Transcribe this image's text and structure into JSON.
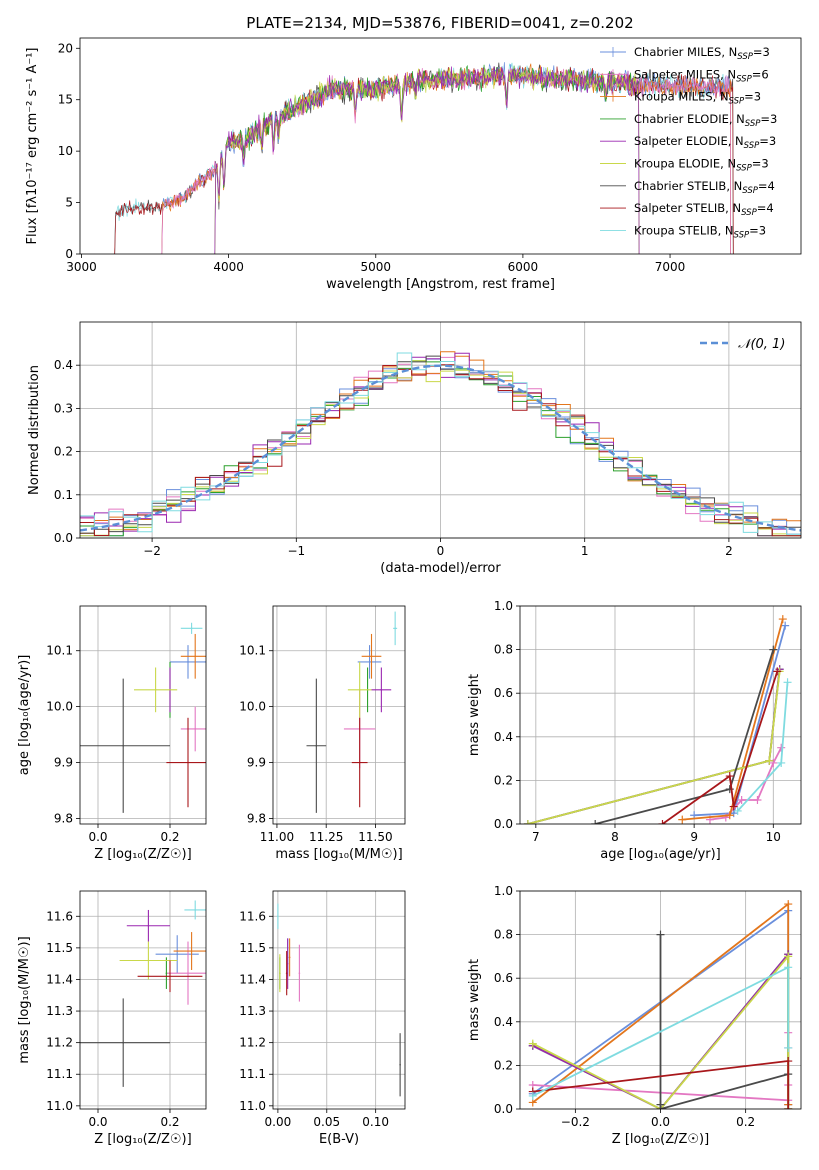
{
  "figure_title": "PLATE=2134, MJD=53876, FIBERID=0041, z=0.202",
  "colors": {
    "Chabrier MILES": "#6a8fdc",
    "Salpeter MILES": "#e377c2",
    "Kroupa MILES": "#e3761c",
    "Chabrier ELODIE": "#2ca02c",
    "Salpeter ELODIE": "#9a27b0",
    "Kroupa ELODIE": "#c9d84a",
    "Chabrier STELIB": "#4a4a4a",
    "Salpeter STELIB": "#a8171b",
    "Kroupa STELIB": "#7fdbe0",
    "normal": "#5b8fd6"
  },
  "chart_data": [
    {
      "id": "spectrum",
      "type": "line",
      "title": "PLATE=2134, MJD=53876, FIBERID=0041, z=0.202",
      "xlabel": "wavelength [Angstrom, rest frame]",
      "ylabel": "Flux [fλ10⁻¹⁷ erg cm⁻² s⁻¹ A⁻¹]",
      "xlim": [
        2990,
        7890
      ],
      "ylim": [
        0,
        21
      ],
      "xticks": [
        3000,
        4000,
        5000,
        6000,
        7000
      ],
      "yticks": [
        0,
        5,
        10,
        15,
        20
      ],
      "grid": false,
      "legend_position": "right",
      "legend": [
        {
          "label": "Chabrier MILES, N",
          "sub": "SSP",
          "suffix": "=3"
        },
        {
          "label": "Salpeter MILES, N",
          "sub": "SSP",
          "suffix": "=6"
        },
        {
          "label": "Kroupa MILES, N",
          "sub": "SSP",
          "suffix": "=3"
        },
        {
          "label": "Chabrier ELODIE, N",
          "sub": "SSP",
          "suffix": "=3"
        },
        {
          "label": "Salpeter ELODIE, N",
          "sub": "SSP",
          "suffix": "=3"
        },
        {
          "label": "Kroupa ELODIE, N",
          "sub": "SSP",
          "suffix": "=3"
        },
        {
          "label": "Chabrier STELIB, N",
          "sub": "SSP",
          "suffix": "=4"
        },
        {
          "label": "Salpeter STELIB, N",
          "sub": "SSP",
          "suffix": "=4"
        },
        {
          "label": "Kroupa STELIB, N",
          "sub": "SSP",
          "suffix": "=3"
        }
      ],
      "continuum": [
        [
          3200,
          3.5
        ],
        [
          3300,
          4.5
        ],
        [
          3500,
          4.5
        ],
        [
          3700,
          5.5
        ],
        [
          3800,
          7
        ],
        [
          3900,
          8
        ],
        [
          4000,
          11
        ],
        [
          4100,
          11
        ],
        [
          4300,
          13
        ],
        [
          4500,
          14.5
        ],
        [
          4700,
          16
        ],
        [
          5000,
          16
        ],
        [
          5300,
          17
        ],
        [
          5600,
          17
        ],
        [
          5900,
          17.5
        ],
        [
          6200,
          17
        ],
        [
          6500,
          16.8
        ],
        [
          6800,
          16.5
        ],
        [
          7100,
          16.3
        ],
        [
          7400,
          16.2
        ],
        [
          7700,
          16
        ]
      ],
      "series_ranges": [
        {
          "name": "Chabrier MILES",
          "x": [
            3540,
            7410
          ]
        },
        {
          "name": "Salpeter MILES",
          "x": [
            3540,
            7410
          ]
        },
        {
          "name": "Kroupa MILES",
          "x": [
            3540,
            7410
          ]
        },
        {
          "name": "Chabrier ELODIE",
          "x": [
            3900,
            6790
          ]
        },
        {
          "name": "Salpeter ELODIE",
          "x": [
            3900,
            6790
          ]
        },
        {
          "name": "Kroupa ELODIE",
          "x": [
            3900,
            6790
          ]
        },
        {
          "name": "Chabrier STELIB",
          "x": [
            3220,
            7430
          ]
        },
        {
          "name": "Salpeter STELIB",
          "x": [
            3220,
            7430
          ]
        },
        {
          "name": "Kroupa STELIB",
          "x": [
            3220,
            7430
          ]
        }
      ]
    },
    {
      "id": "residuals",
      "type": "histogram",
      "xlabel": "(data-model)/error",
      "ylabel": "Normed distribution",
      "xlim": [
        -2.5,
        2.5
      ],
      "ylim": [
        0,
        0.5
      ],
      "xticks": [
        -2,
        -1,
        0,
        1,
        2
      ],
      "yticks": [
        0.0,
        0.1,
        0.2,
        0.3,
        0.4
      ],
      "grid": true,
      "legend_position": "top-right",
      "legend_label": "𝒩(0, 1)",
      "bin_width": 0.1
    },
    {
      "id": "age_vs_Z",
      "type": "errorbar",
      "xlabel": "Z [log₁₀(Z/Z☉)]",
      "ylabel": "age  [log₁₀(age/yr)]",
      "xlim": [
        -0.05,
        0.3
      ],
      "ylim": [
        9.79,
        10.18
      ],
      "xticks": [
        0.0,
        0.2
      ],
      "yticks": [
        9.8,
        9.9,
        10.0,
        10.1
      ],
      "points": [
        {
          "s": "Chabrier MILES",
          "x": 0.25,
          "xe": 0.05,
          "y": 10.08,
          "ye": 0.03
        },
        {
          "s": "Salpeter MILES",
          "x": 0.27,
          "xe": 0.04,
          "y": 9.96,
          "ye": 0.04
        },
        {
          "s": "Kroupa MILES",
          "x": 0.27,
          "xe": 0.04,
          "y": 10.09,
          "ye": 0.04
        },
        {
          "s": "Chabrier ELODIE",
          "x": 0.2,
          "xe": 0.0,
          "y": 10.03,
          "ye": 0.05
        },
        {
          "s": "Salpeter ELODIE",
          "x": 0.2,
          "xe": 0.0,
          "y": 10.03,
          "ye": 0.04
        },
        {
          "s": "Kroupa ELODIE",
          "x": 0.16,
          "xe": 0.06,
          "y": 10.03,
          "ye": 0.04
        },
        {
          "s": "Chabrier STELIB",
          "x": 0.07,
          "xe": 0.13,
          "y": 9.93,
          "ye": 0.12
        },
        {
          "s": "Salpeter STELIB",
          "x": 0.25,
          "xe": 0.06,
          "y": 9.9,
          "ye": 0.08
        },
        {
          "s": "Kroupa STELIB",
          "x": 0.26,
          "xe": 0.03,
          "y": 10.14,
          "ye": 0.01
        }
      ]
    },
    {
      "id": "age_vs_mass",
      "type": "errorbar",
      "xlabel": "mass [log₁₀(M/M☉)]",
      "ylabel": "",
      "xlim": [
        10.98,
        11.65
      ],
      "ylim": [
        9.79,
        10.18
      ],
      "xticks": [
        11.0,
        11.25,
        11.5
      ],
      "yticks": [
        9.8,
        9.9,
        10.0,
        10.1
      ],
      "points": [
        {
          "s": "Chabrier MILES",
          "x": 11.47,
          "xe": 0.06,
          "y": 10.08,
          "ye": 0.03
        },
        {
          "s": "Salpeter MILES",
          "x": 11.42,
          "xe": 0.08,
          "y": 9.96,
          "ye": 0.07
        },
        {
          "s": "Kroupa MILES",
          "x": 11.48,
          "xe": 0.05,
          "y": 10.09,
          "ye": 0.04
        },
        {
          "s": "Chabrier ELODIE",
          "x": 11.46,
          "xe": 0.0,
          "y": 10.03,
          "ye": 0.04
        },
        {
          "s": "Salpeter ELODIE",
          "x": 11.53,
          "xe": 0.05,
          "y": 10.03,
          "ye": 0.04
        },
        {
          "s": "Kroupa ELODIE",
          "x": 11.42,
          "xe": 0.06,
          "y": 10.03,
          "ye": 0.05
        },
        {
          "s": "Chabrier STELIB",
          "x": 11.2,
          "xe": 0.05,
          "y": 9.93,
          "ye": 0.12
        },
        {
          "s": "Salpeter STELIB",
          "x": 11.42,
          "xe": 0.04,
          "y": 9.9,
          "ye": 0.08
        },
        {
          "s": "Kroupa STELIB",
          "x": 11.6,
          "xe": 0.01,
          "y": 10.14,
          "ye": 0.03
        }
      ]
    },
    {
      "id": "weight_vs_age",
      "type": "line",
      "xlabel": "age  [log₁₀(age/yr)]",
      "ylabel": "mass weight",
      "xlim": [
        6.8,
        10.35
      ],
      "ylim": [
        0,
        1
      ],
      "xticks": [
        7,
        8,
        9,
        10
      ],
      "yticks": [
        0.0,
        0.2,
        0.4,
        0.6,
        0.8,
        1.0
      ],
      "series": [
        {
          "name": "Chabrier MILES",
          "x": [
            9.0,
            9.5,
            10.15
          ],
          "y": [
            0.04,
            0.05,
            0.91
          ]
        },
        {
          "name": "Salpeter MILES",
          "x": [
            9.2,
            9.4,
            9.6,
            9.8,
            10.0,
            10.1
          ],
          "y": [
            0.02,
            0.03,
            0.11,
            0.11,
            0.28,
            0.35
          ]
        },
        {
          "name": "Kroupa MILES",
          "x": [
            8.85,
            9.45,
            10.12
          ],
          "y": [
            0.02,
            0.04,
            0.94
          ]
        },
        {
          "name": "Chabrier ELODIE",
          "x": [
            6.9,
            9.95,
            10.08
          ],
          "y": [
            0.0,
            0.29,
            0.71
          ]
        },
        {
          "name": "Salpeter ELODIE",
          "x": [
            6.9,
            9.95,
            10.08
          ],
          "y": [
            0.0,
            0.29,
            0.71
          ]
        },
        {
          "name": "Kroupa ELODIE",
          "x": [
            6.9,
            9.95,
            10.08
          ],
          "y": [
            0.0,
            0.29,
            0.7
          ]
        },
        {
          "name": "Chabrier STELIB",
          "x": [
            7.75,
            9.45,
            10.0
          ],
          "y": [
            0.0,
            0.16,
            0.8
          ]
        },
        {
          "name": "Salpeter STELIB",
          "x": [
            8.6,
            9.45,
            9.5,
            10.05
          ],
          "y": [
            0.0,
            0.22,
            0.08,
            0.7
          ]
        },
        {
          "name": "Kroupa STELIB",
          "x": [
            9.55,
            10.1,
            10.18
          ],
          "y": [
            0.06,
            0.28,
            0.65
          ]
        }
      ]
    },
    {
      "id": "mass_vs_Z",
      "type": "errorbar",
      "xlabel": "Z [log₁₀(Z/Z☉)]",
      "ylabel": "mass [log₁₀(M/M☉)]",
      "xlim": [
        -0.05,
        0.3
      ],
      "ylim": [
        10.99,
        11.68
      ],
      "xticks": [
        0.0,
        0.2
      ],
      "yticks": [
        11.0,
        11.1,
        11.2,
        11.3,
        11.4,
        11.5,
        11.6
      ],
      "points": [
        {
          "s": "Chabrier MILES",
          "x": 0.22,
          "xe": 0.06,
          "y": 11.48,
          "ye": 0.06
        },
        {
          "s": "Salpeter MILES",
          "x": 0.25,
          "xe": 0.06,
          "y": 11.42,
          "ye": 0.1
        },
        {
          "s": "Kroupa MILES",
          "x": 0.26,
          "xe": 0.05,
          "y": 11.49,
          "ye": 0.06
        },
        {
          "s": "Chabrier ELODIE",
          "x": 0.19,
          "xe": 0.0,
          "y": 11.42,
          "ye": 0.05
        },
        {
          "s": "Salpeter ELODIE",
          "x": 0.14,
          "xe": 0.06,
          "y": 11.57,
          "ye": 0.05
        },
        {
          "s": "Kroupa ELODIE",
          "x": 0.14,
          "xe": 0.08,
          "y": 11.46,
          "ye": 0.06
        },
        {
          "s": "Chabrier STELIB",
          "x": 0.07,
          "xe": 0.13,
          "y": 11.2,
          "ye": 0.14
        },
        {
          "s": "Salpeter STELIB",
          "x": 0.2,
          "xe": 0.09,
          "y": 11.41,
          "ye": 0.05
        },
        {
          "s": "Kroupa STELIB",
          "x": 0.27,
          "xe": 0.03,
          "y": 11.62,
          "ye": 0.03
        }
      ]
    },
    {
      "id": "mass_vs_EBV",
      "type": "errorbar",
      "xlabel": "E(B-V)",
      "ylabel": "",
      "xlim": [
        -0.005,
        0.13
      ],
      "ylim": [
        10.99,
        11.68
      ],
      "xticks": [
        0.0,
        0.05,
        0.1
      ],
      "yticks": [
        11.0,
        11.1,
        11.2,
        11.3,
        11.4,
        11.5,
        11.6
      ],
      "points": [
        {
          "s": "Chabrier MILES",
          "x": 0.01,
          "y": 11.47,
          "ye": 0.06
        },
        {
          "s": "Salpeter MILES",
          "x": 0.022,
          "y": 11.42,
          "ye": 0.09
        },
        {
          "s": "Kroupa MILES",
          "x": 0.012,
          "y": 11.47,
          "ye": 0.06
        },
        {
          "s": "Chabrier ELODIE",
          "x": 0.002,
          "y": 11.42,
          "ye": 0.05
        },
        {
          "s": "Salpeter ELODIE",
          "x": 0.01,
          "y": 11.45,
          "ye": 0.08
        },
        {
          "s": "Kroupa ELODIE",
          "x": 0.002,
          "y": 11.42,
          "ye": 0.06
        },
        {
          "s": "Chabrier STELIB",
          "x": 0.125,
          "y": 11.13,
          "ye": 0.1
        },
        {
          "s": "Salpeter STELIB",
          "x": 0.009,
          "y": 11.42,
          "ye": 0.07
        },
        {
          "s": "Kroupa STELIB",
          "x": 0.0,
          "y": 11.6,
          "ye": 0.04
        }
      ]
    },
    {
      "id": "weight_vs_Z",
      "type": "line",
      "xlabel": "Z [log₁₀(Z/Z☉)]",
      "ylabel": "mass weight",
      "xlim": [
        -0.33,
        0.33
      ],
      "ylim": [
        0,
        1
      ],
      "xticks": [
        -0.2,
        0.0,
        0.2
      ],
      "yticks": [
        0.0,
        0.2,
        0.4,
        0.6,
        0.8,
        1.0
      ],
      "series": [
        {
          "name": "Chabrier MILES",
          "x": [
            -0.3,
            0.3,
            0.3
          ],
          "y": [
            0.07,
            0.91,
            0.02
          ]
        },
        {
          "name": "Salpeter MILES",
          "x": [
            -0.3,
            0.3,
            0.3,
            0.3,
            0.3
          ],
          "y": [
            0.11,
            0.04,
            0.11,
            0.28,
            0.35
          ]
        },
        {
          "name": "Kroupa MILES",
          "x": [
            -0.3,
            0.3,
            0.3
          ],
          "y": [
            0.03,
            0.94,
            0.02
          ]
        },
        {
          "name": "Chabrier ELODIE",
          "x": [
            -0.3,
            0.0,
            0.3,
            0.3
          ],
          "y": [
            0.29,
            0.0,
            0.71,
            0.0
          ]
        },
        {
          "name": "Salpeter ELODIE",
          "x": [
            -0.3,
            0.0,
            0.3
          ],
          "y": [
            0.29,
            0.0,
            0.71
          ]
        },
        {
          "name": "Kroupa ELODIE",
          "x": [
            -0.3,
            0.0,
            0.3,
            0.3
          ],
          "y": [
            0.3,
            0.0,
            0.7,
            0.0
          ]
        },
        {
          "name": "Chabrier STELIB",
          "x": [
            0.0,
            0.0,
            0.0,
            0.3
          ],
          "y": [
            0.8,
            0.02,
            0.0,
            0.16
          ]
        },
        {
          "name": "Salpeter STELIB",
          "x": [
            -0.3,
            0.3,
            0.3
          ],
          "y": [
            0.08,
            0.22,
            0.0
          ]
        },
        {
          "name": "Kroupa STELIB",
          "x": [
            -0.3,
            0.3,
            0.3
          ],
          "y": [
            0.06,
            0.65,
            0.28
          ]
        }
      ]
    }
  ]
}
